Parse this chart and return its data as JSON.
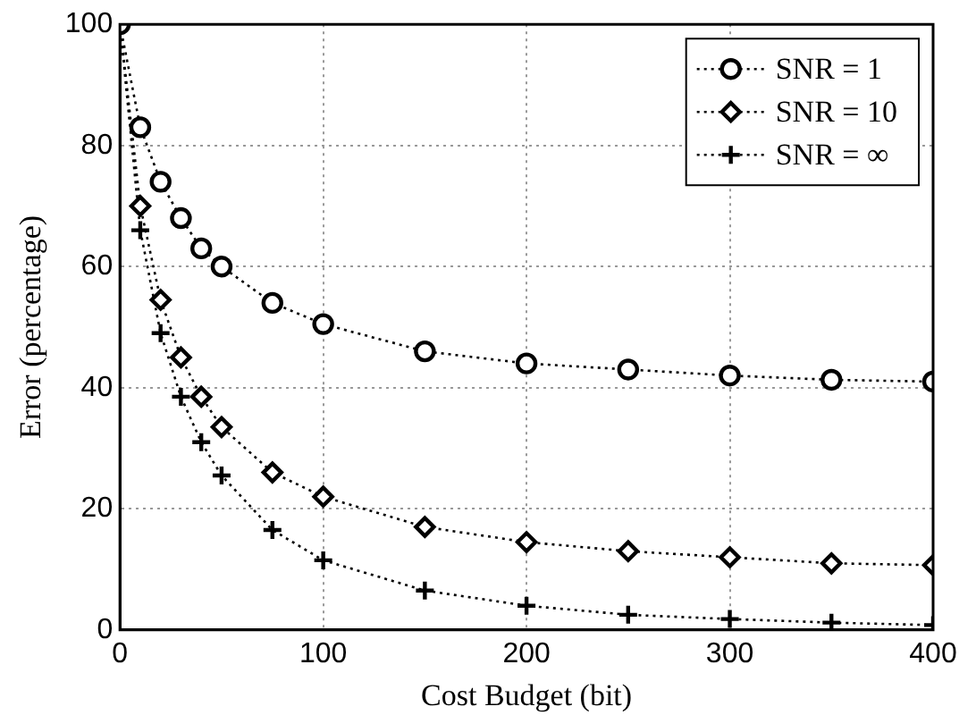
{
  "chart_data": {
    "type": "line",
    "xlabel": "Cost Budget (bit)",
    "ylabel": "Error (percentage)",
    "x": [
      0,
      10,
      20,
      30,
      40,
      50,
      75,
      100,
      150,
      200,
      250,
      300,
      350,
      400
    ],
    "series": [
      {
        "name": "SNR = 1",
        "color": "#000000",
        "marker": "circle",
        "values": [
          100,
          83,
          74,
          68,
          63,
          60,
          54,
          50.5,
          46,
          44,
          43,
          42,
          41.3,
          41
        ]
      },
      {
        "name": "SNR = 10",
        "color": "#000000",
        "marker": "diamond",
        "values": [
          100,
          70,
          54.5,
          45,
          38.5,
          33.5,
          26,
          22,
          17,
          14.5,
          13,
          12,
          11,
          10.7
        ]
      },
      {
        "name": "SNR = ∞",
        "color": "#000000",
        "marker": "cross",
        "values": [
          100,
          66,
          49,
          38.5,
          31,
          25.5,
          16.5,
          11.5,
          6.5,
          4,
          2.5,
          1.8,
          1.2,
          0.8
        ]
      }
    ],
    "xlim": [
      0,
      400
    ],
    "xticks": [
      0,
      100,
      200,
      300,
      400
    ],
    "ylim": [
      0,
      100
    ],
    "yticks": [
      0,
      20,
      40,
      60,
      80,
      100
    ],
    "grid": true,
    "legend": "top right",
    "line_style": "dotted"
  }
}
